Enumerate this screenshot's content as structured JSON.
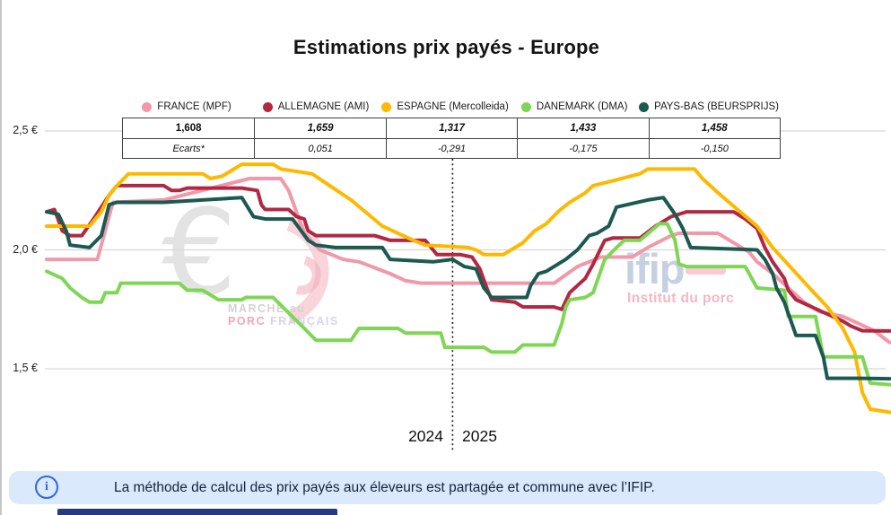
{
  "title": "Estimations prix payés - Europe",
  "table": {
    "prices": [
      "1,608",
      "1,659",
      "1,317",
      "1,433",
      "1,458"
    ],
    "ecarts": [
      "Ecarts*",
      "0,051",
      "-0,291",
      "-0,175",
      "-0,150"
    ]
  },
  "watermarks": {
    "mpf_line1": "MARCHÉ au",
    "mpf_line2a": "PORC",
    "mpf_line2b": "FRANÇAIS",
    "ifip": "ifip",
    "ifip_sub": "Institut du porc"
  },
  "note": {
    "icon": "info-icon",
    "icon_char": "i",
    "text": "La méthode de calcul des prix payés aux éleveurs est partagée et commune avec l’IFIP."
  },
  "chart_data": {
    "type": "line",
    "title": "Estimations prix payés - Europe",
    "x_unit": "semaine",
    "x_range": [
      0,
      108
    ],
    "years": [
      "2024",
      "2025"
    ],
    "year_divider_week": 52,
    "ylim": [
      1.25,
      2.55
    ],
    "ylabel": "€",
    "y_ticks": [
      2.5,
      2.0,
      1.5
    ],
    "y_tick_labels": [
      "2,5 €",
      "2,0 €",
      "1,5 €"
    ],
    "grid": true,
    "legend_position": "top",
    "series": [
      {
        "id": "france-mpf",
        "name": "FRANCE (MPF)",
        "color": "#F298AB",
        "last_price": 1.608,
        "ecart": 0.051,
        "points": [
          [
            0,
            1.96
          ],
          [
            6.5,
            1.96
          ],
          [
            8.5,
            2.2
          ],
          [
            15,
            2.21
          ],
          [
            26,
            2.3
          ],
          [
            30,
            2.3
          ],
          [
            31,
            2.25
          ],
          [
            33,
            2.07
          ],
          [
            35,
            2.0
          ],
          [
            38,
            1.96
          ],
          [
            40,
            1.95
          ],
          [
            44,
            1.9
          ],
          [
            46,
            1.87
          ],
          [
            48,
            1.86
          ],
          [
            65,
            1.86
          ],
          [
            68,
            1.93
          ],
          [
            71,
            1.97
          ],
          [
            75,
            1.97
          ],
          [
            77,
            2.01
          ],
          [
            80,
            2.06
          ],
          [
            81,
            2.07
          ],
          [
            86,
            2.07
          ],
          [
            88,
            2.03
          ],
          [
            90,
            1.99
          ],
          [
            91,
            1.95
          ],
          [
            93,
            1.9
          ],
          [
            95,
            1.84
          ],
          [
            97,
            1.78
          ],
          [
            99,
            1.74
          ],
          [
            102,
            1.72
          ],
          [
            104,
            1.69
          ],
          [
            106,
            1.66
          ],
          [
            108,
            1.61
          ]
        ]
      },
      {
        "id": "allemagne-ami",
        "name": "ALLEMAGNE (AMI)",
        "color": "#B12843",
        "last_price": 1.659,
        "ecart": 0.051,
        "points": [
          [
            0,
            2.16
          ],
          [
            1,
            2.17
          ],
          [
            2,
            2.08
          ],
          [
            3,
            2.06
          ],
          [
            4.5,
            2.06
          ],
          [
            6,
            2.13
          ],
          [
            8,
            2.23
          ],
          [
            9,
            2.27
          ],
          [
            15,
            2.27
          ],
          [
            16,
            2.25
          ],
          [
            17,
            2.25
          ],
          [
            18,
            2.26
          ],
          [
            25,
            2.26
          ],
          [
            27,
            2.25
          ],
          [
            27.5,
            2.19
          ],
          [
            28,
            2.17
          ],
          [
            31,
            2.17
          ],
          [
            32,
            2.14
          ],
          [
            33,
            2.13
          ],
          [
            33.5,
            2.08
          ],
          [
            34.5,
            2.06
          ],
          [
            42,
            2.06
          ],
          [
            44,
            2.04
          ],
          [
            48.5,
            2.04
          ],
          [
            50,
            1.98
          ],
          [
            53,
            1.98
          ],
          [
            54.5,
            1.97
          ],
          [
            55.5,
            1.92
          ],
          [
            56.5,
            1.83
          ],
          [
            57,
            1.79
          ],
          [
            60,
            1.78
          ],
          [
            61,
            1.76
          ],
          [
            65,
            1.76
          ],
          [
            66,
            1.75
          ],
          [
            67,
            1.82
          ],
          [
            69,
            1.88
          ],
          [
            70,
            1.94
          ],
          [
            71.5,
            2.04
          ],
          [
            72.5,
            2.05
          ],
          [
            76,
            2.05
          ],
          [
            78,
            2.1
          ],
          [
            80,
            2.14
          ],
          [
            82,
            2.16
          ],
          [
            88,
            2.16
          ],
          [
            89.5,
            2.13
          ],
          [
            91,
            2.09
          ],
          [
            92,
            2.01
          ],
          [
            93,
            1.95
          ],
          [
            94.5,
            1.88
          ],
          [
            95,
            1.83
          ],
          [
            96,
            1.79
          ],
          [
            98,
            1.76
          ],
          [
            100,
            1.73
          ],
          [
            102,
            1.7
          ],
          [
            103,
            1.68
          ],
          [
            104.5,
            1.66
          ],
          [
            108,
            1.659
          ]
        ]
      },
      {
        "id": "espagne-mercolleida",
        "name": "ESPAGNE (Mercolleida)",
        "color": "#FCB900",
        "last_price": 1.317,
        "ecart": -0.291,
        "points": [
          [
            0,
            2.1
          ],
          [
            5.5,
            2.1
          ],
          [
            7,
            2.16
          ],
          [
            8,
            2.23
          ],
          [
            9,
            2.27
          ],
          [
            10.5,
            2.32
          ],
          [
            20,
            2.32
          ],
          [
            21,
            2.3
          ],
          [
            22.5,
            2.31
          ],
          [
            24,
            2.34
          ],
          [
            25,
            2.36
          ],
          [
            29,
            2.36
          ],
          [
            30,
            2.34
          ],
          [
            34,
            2.32
          ],
          [
            39,
            2.21
          ],
          [
            43,
            2.1
          ],
          [
            47,
            2.04
          ],
          [
            48.5,
            2.02
          ],
          [
            54,
            2.01
          ],
          [
            55,
            2.0
          ],
          [
            56,
            1.98
          ],
          [
            58.5,
            1.98
          ],
          [
            59.5,
            2.0
          ],
          [
            61,
            2.03
          ],
          [
            62.5,
            2.08
          ],
          [
            64,
            2.11
          ],
          [
            65.5,
            2.16
          ],
          [
            67,
            2.2
          ],
          [
            69,
            2.24
          ],
          [
            70,
            2.27
          ],
          [
            72.5,
            2.29
          ],
          [
            76,
            2.32
          ],
          [
            77,
            2.34
          ],
          [
            83,
            2.34
          ],
          [
            84,
            2.3
          ],
          [
            86,
            2.24
          ],
          [
            88.5,
            2.17
          ],
          [
            91,
            2.1
          ],
          [
            93,
            2.01
          ],
          [
            95.5,
            1.92
          ],
          [
            98,
            1.83
          ],
          [
            100,
            1.76
          ],
          [
            102,
            1.67
          ],
          [
            103.5,
            1.57
          ],
          [
            104.5,
            1.4
          ],
          [
            105.5,
            1.33
          ],
          [
            108,
            1.317
          ]
        ]
      },
      {
        "id": "danemark-dma",
        "name": "DANEMARK (DMA)",
        "color": "#7FD655",
        "last_price": 1.433,
        "ecart": -0.175,
        "points": [
          [
            0,
            1.91
          ],
          [
            2,
            1.88
          ],
          [
            3,
            1.84
          ],
          [
            4.5,
            1.8
          ],
          [
            5.5,
            1.78
          ],
          [
            7,
            1.78
          ],
          [
            7.5,
            1.82
          ],
          [
            9,
            1.82
          ],
          [
            9.5,
            1.86
          ],
          [
            17,
            1.86
          ],
          [
            18,
            1.83
          ],
          [
            20,
            1.83
          ],
          [
            22,
            1.79
          ],
          [
            25,
            1.79
          ],
          [
            25.5,
            1.8
          ],
          [
            29,
            1.8
          ],
          [
            33,
            1.67
          ],
          [
            34.5,
            1.62
          ],
          [
            39,
            1.62
          ],
          [
            40,
            1.67
          ],
          [
            45,
            1.67
          ],
          [
            46,
            1.65
          ],
          [
            50.5,
            1.65
          ],
          [
            51,
            1.59
          ],
          [
            56,
            1.59
          ],
          [
            57,
            1.57
          ],
          [
            60,
            1.57
          ],
          [
            61,
            1.6
          ],
          [
            65,
            1.6
          ],
          [
            66,
            1.69
          ],
          [
            66.5,
            1.76
          ],
          [
            67,
            1.79
          ],
          [
            69,
            1.8
          ],
          [
            70,
            1.82
          ],
          [
            71.5,
            1.96
          ],
          [
            73,
            2.01
          ],
          [
            74,
            2.04
          ],
          [
            76,
            2.04
          ],
          [
            78.5,
            2.11
          ],
          [
            79.5,
            2.11
          ],
          [
            80.5,
            2.04
          ],
          [
            81,
            1.94
          ],
          [
            82,
            1.93
          ],
          [
            89.5,
            1.93
          ],
          [
            91,
            1.84
          ],
          [
            94.5,
            1.83
          ],
          [
            95,
            1.72
          ],
          [
            98.5,
            1.72
          ],
          [
            99.5,
            1.55
          ],
          [
            104.5,
            1.55
          ],
          [
            105.5,
            1.44
          ],
          [
            108,
            1.433
          ]
        ]
      },
      {
        "id": "pays-bas-beursprijs",
        "name": "PAYS-BAS (BEURSPRIJS)",
        "color": "#1C5951",
        "last_price": 1.458,
        "ecart": -0.15,
        "points": [
          [
            0,
            2.16
          ],
          [
            1.5,
            2.15
          ],
          [
            2.5,
            2.08
          ],
          [
            3,
            2.02
          ],
          [
            5.5,
            2.01
          ],
          [
            7,
            2.06
          ],
          [
            8,
            2.19
          ],
          [
            9,
            2.2
          ],
          [
            15,
            2.2
          ],
          [
            20,
            2.21
          ],
          [
            25,
            2.22
          ],
          [
            26.5,
            2.14
          ],
          [
            28,
            2.13
          ],
          [
            31.5,
            2.13
          ],
          [
            33.5,
            2.04
          ],
          [
            34.5,
            2.02
          ],
          [
            37,
            2.01
          ],
          [
            43,
            2.01
          ],
          [
            44,
            1.96
          ],
          [
            49.5,
            1.95
          ],
          [
            52,
            1.96
          ],
          [
            53.5,
            1.93
          ],
          [
            55,
            1.92
          ],
          [
            56,
            1.84
          ],
          [
            57,
            1.8
          ],
          [
            61.5,
            1.8
          ],
          [
            62,
            1.85
          ],
          [
            63,
            1.9
          ],
          [
            64,
            1.91
          ],
          [
            66.5,
            1.96
          ],
          [
            68,
            2.0
          ],
          [
            69.5,
            2.06
          ],
          [
            70.5,
            2.07
          ],
          [
            72,
            2.1
          ],
          [
            73,
            2.18
          ],
          [
            77,
            2.21
          ],
          [
            79,
            2.22
          ],
          [
            80.5,
            2.15
          ],
          [
            81.5,
            2.09
          ],
          [
            82.5,
            2.01
          ],
          [
            91,
            2.0
          ],
          [
            92,
            1.96
          ],
          [
            93,
            1.9
          ],
          [
            93.5,
            1.84
          ],
          [
            94.5,
            1.78
          ],
          [
            96,
            1.64
          ],
          [
            98.5,
            1.64
          ],
          [
            99.5,
            1.55
          ],
          [
            100,
            1.46
          ],
          [
            104,
            1.46
          ],
          [
            108,
            1.458
          ]
        ]
      }
    ]
  }
}
